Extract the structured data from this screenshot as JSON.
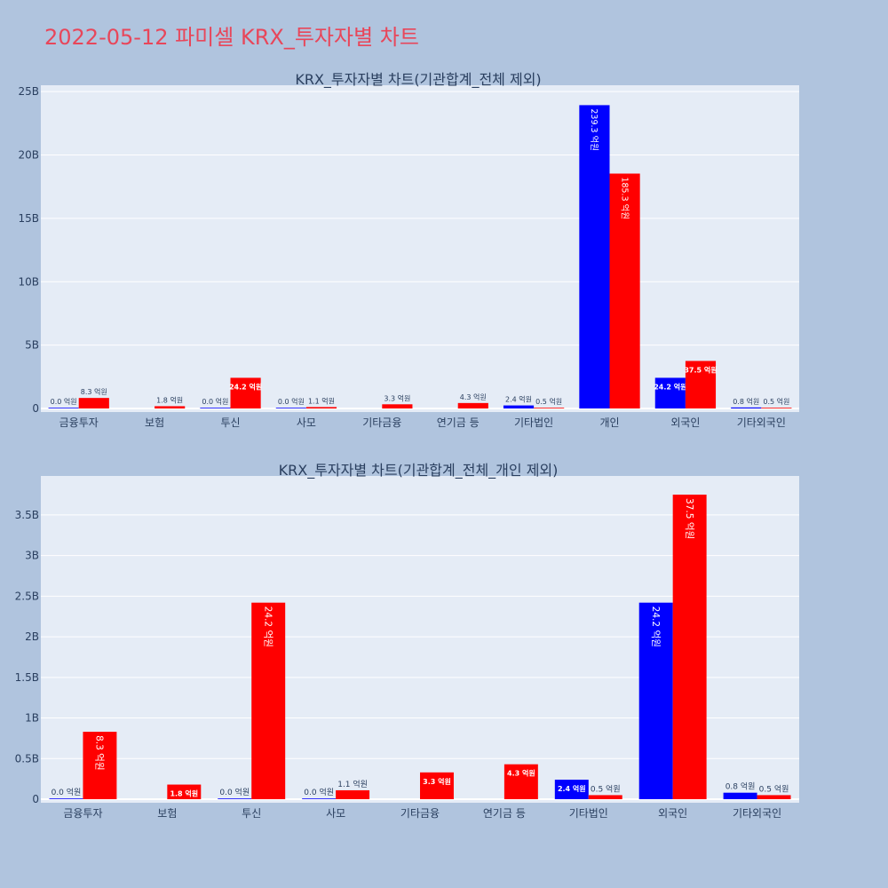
{
  "page": {
    "title": "2022-05-12 파미셀 KRX_투자자별 차트"
  },
  "colors": {
    "buy": "#0000ff",
    "sell": "#ff0000",
    "plot_bg": "#e5ecf6",
    "page_bg": "#b0c4de",
    "title": "#e8465a"
  },
  "chart_data": [
    {
      "type": "bar",
      "title": "KRX_투자자별 차트(기관합계_전체 제외)",
      "categories": [
        "금융투자",
        "보험",
        "투신",
        "사모",
        "기타금융",
        "연기금 등",
        "기타법인",
        "개인",
        "외국인",
        "기타외국인"
      ],
      "series": [
        {
          "values": [
            0,
            null,
            0,
            0,
            null,
            null,
            240000000,
            23930000000,
            2420000000,
            80000000
          ],
          "labels": [
            "0.0 억원",
            "",
            "0.0 억원",
            "0.0 억원",
            "",
            "",
            "2.4 억원",
            "239.3 억원",
            "24.2 억원",
            "0.8 억원"
          ]
        },
        {
          "values": [
            830000000,
            180000000,
            2420000000,
            110000000,
            330000000,
            430000000,
            50000000,
            18530000000,
            3750000000,
            50000000
          ],
          "labels": [
            "8.3 억원",
            "1.8 억원",
            "24.2 억원",
            "1.1 억원",
            "3.3 억원",
            "4.3 억원",
            "0.5 억원",
            "185.3 억원",
            "37.5 억원",
            "0.5 억원"
          ]
        }
      ],
      "ylim": [
        0,
        25500000000
      ],
      "yticks": [
        0,
        5000000000,
        10000000000,
        15000000000,
        20000000000,
        25000000000
      ],
      "ytick_labels": [
        "0",
        "5B",
        "10B",
        "15B",
        "20B",
        "25B"
      ]
    },
    {
      "type": "bar",
      "title": "KRX_투자자별 차트(기관합계_전체_개인 제외)",
      "categories": [
        "금융투자",
        "보험",
        "투신",
        "사모",
        "기타금융",
        "연기금 등",
        "기타법인",
        "외국인",
        "기타외국인"
      ],
      "series": [
        {
          "values": [
            0,
            null,
            0,
            0,
            null,
            null,
            240000000,
            2420000000,
            80000000
          ],
          "labels": [
            "0.0 억원",
            "",
            "0.0 억원",
            "0.0 억원",
            "",
            "",
            "2.4 억원",
            "24.2 억원",
            "0.8 억원"
          ]
        },
        {
          "values": [
            830000000,
            180000000,
            2420000000,
            110000000,
            330000000,
            430000000,
            50000000,
            3750000000,
            50000000
          ],
          "labels": [
            "8.3 억원",
            "1.8 억원",
            "24.2 억원",
            "1.1 억원",
            "3.3 억원",
            "4.3 억원",
            "0.5 억원",
            "37.5 억원",
            "0.5 억원"
          ]
        }
      ],
      "ylim": [
        0,
        3980000000
      ],
      "yticks": [
        0,
        500000000,
        1000000000,
        1500000000,
        2000000000,
        2500000000,
        3000000000,
        3500000000
      ],
      "ytick_labels": [
        "0",
        "0.5B",
        "1B",
        "1.5B",
        "2B",
        "2.5B",
        "3B",
        "3.5B"
      ]
    }
  ]
}
